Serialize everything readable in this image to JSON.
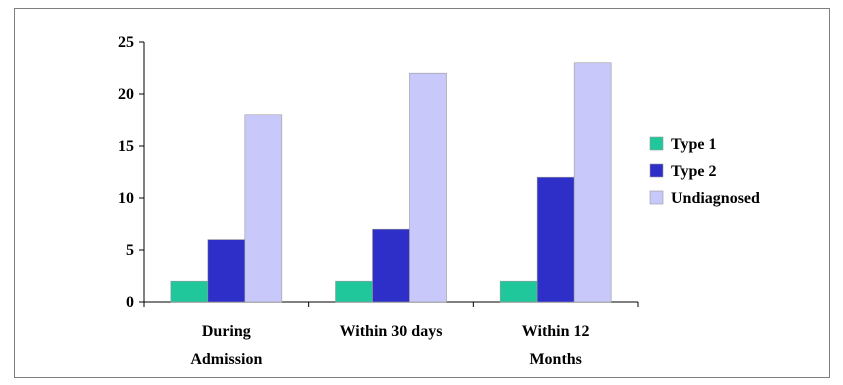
{
  "chart_data": {
    "type": "bar",
    "title": "",
    "xlabel": "",
    "ylabel": "",
    "categories": [
      [
        "During",
        "Admission"
      ],
      [
        "Within 30 days"
      ],
      [
        "Within 12",
        "Months"
      ]
    ],
    "series": [
      {
        "name": "Type 1",
        "color": "#1fc79a",
        "values": [
          2,
          2,
          2
        ]
      },
      {
        "name": "Type 2",
        "color": "#2e2ec8",
        "values": [
          6,
          7,
          12
        ]
      },
      {
        "name": "Undiagnosed",
        "color": "#c8c8fa",
        "values": [
          18,
          22,
          23
        ]
      }
    ],
    "ylim": [
      0,
      25
    ],
    "yticks": [
      "0",
      "5",
      "10",
      "15",
      "20",
      "25"
    ],
    "grid": false,
    "legend": "right"
  }
}
